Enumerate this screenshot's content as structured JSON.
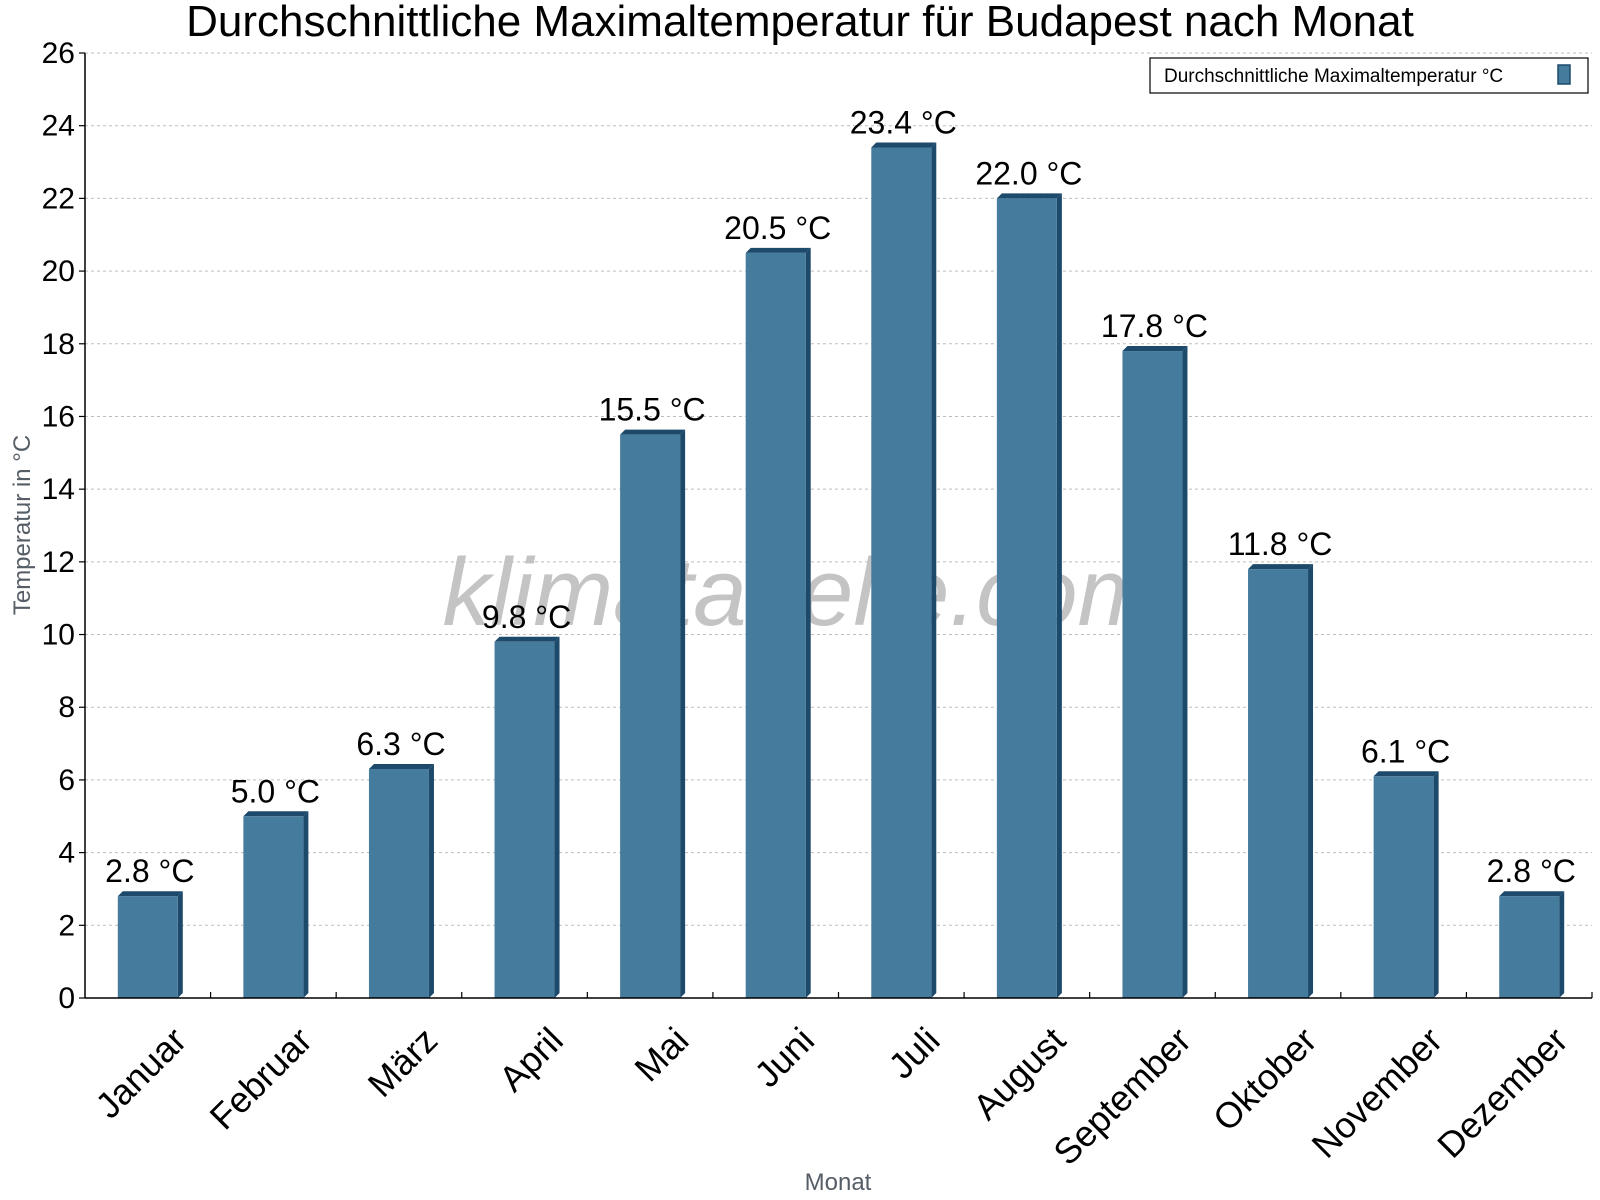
{
  "chart_data": {
    "type": "bar",
    "title": "Durchschnittliche Maximaltemperatur für Budapest nach Monat",
    "xlabel": "Monat",
    "ylabel": "Temperatur in °C",
    "categories": [
      "Januar",
      "Februar",
      "März",
      "April",
      "Mai",
      "Juni",
      "Juli",
      "August",
      "September",
      "Oktober",
      "November",
      "Dezember"
    ],
    "series": [
      {
        "name": "Durchschnittliche Maximaltemperatur °C",
        "values": [
          2.8,
          5.0,
          6.3,
          9.8,
          15.5,
          20.5,
          23.4,
          22.0,
          17.8,
          11.8,
          6.1,
          2.8
        ],
        "labels": [
          "2.8 °C",
          "5.0 °C",
          "6.3 °C",
          "9.8 °C",
          "15.5 °C",
          "20.5 °C",
          "23.4 °C",
          "22.0 °C",
          "17.8 °C",
          "11.8 °C",
          "6.1 °C",
          "2.8 °C"
        ]
      }
    ],
    "ylim": [
      0,
      26
    ],
    "yticks": [
      0,
      2,
      4,
      6,
      8,
      10,
      12,
      14,
      16,
      18,
      20,
      22,
      24,
      26
    ],
    "grid": true,
    "legend_position": "top-right",
    "colors": {
      "bar": "#457b9d",
      "bar_side": "#1d4a6b"
    },
    "watermark": "klimatabelle.com"
  }
}
